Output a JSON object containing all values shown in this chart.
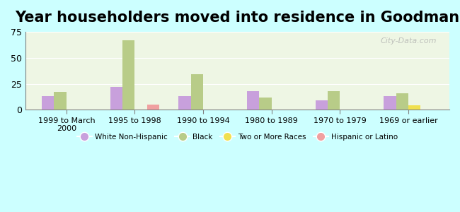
{
  "title": "Year householders moved into residence in Goodman",
  "categories": [
    "1999 to March\n2000",
    "1995 to 1998",
    "1990 to 1994",
    "1980 to 1989",
    "1970 to 1979",
    "1969 or earlier"
  ],
  "series": {
    "White Non-Hispanic": [
      13,
      22,
      13,
      18,
      9,
      13
    ],
    "Black": [
      17,
      67,
      34,
      12,
      18,
      16
    ],
    "Two or More Races": [
      0,
      0,
      0,
      0,
      0,
      4
    ],
    "Hispanic or Latino": [
      0,
      5,
      0,
      0,
      0,
      0
    ]
  },
  "colors": {
    "White Non-Hispanic": "#c8a0dc",
    "Black": "#b8cc88",
    "Two or More Races": "#f0e050",
    "Hispanic or Latino": "#f0a0a0"
  },
  "ylim": [
    0,
    75
  ],
  "yticks": [
    0,
    25,
    50,
    75
  ],
  "background_color": "#ccffff",
  "plot_bg": "#eef6e4",
  "watermark": "City-Data.com",
  "title_fontsize": 15,
  "bar_width": 0.18
}
